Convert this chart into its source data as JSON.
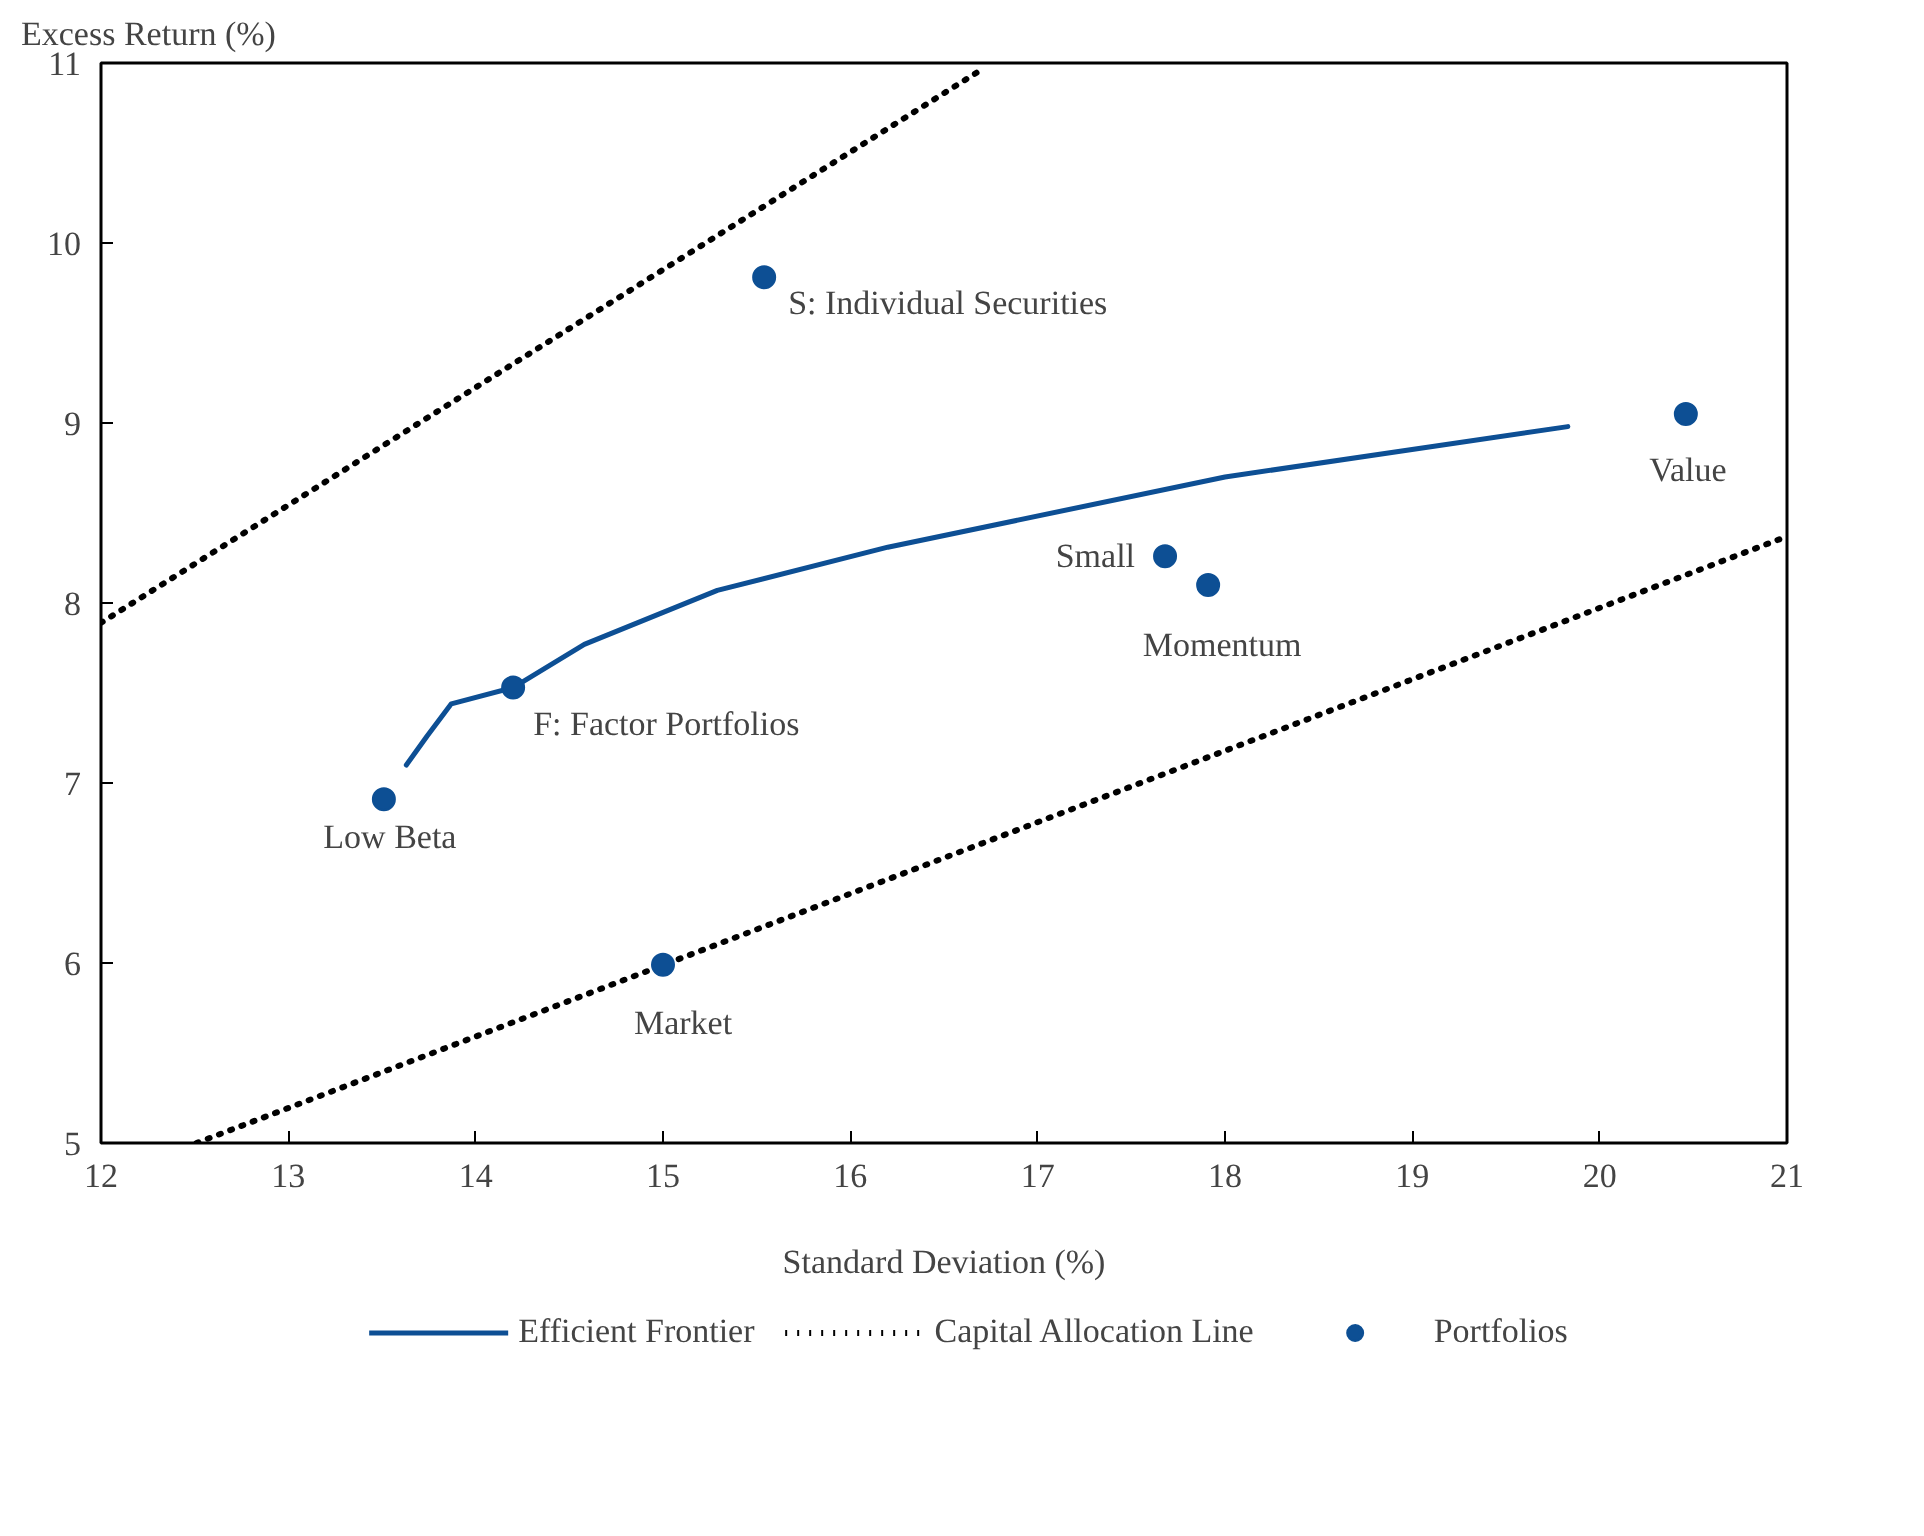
{
  "chart_data": {
    "type": "scatter",
    "xlabel": "Standard Deviation (%)",
    "ylabel": "Excess Return (%)",
    "xlim": [
      12,
      21
    ],
    "ylim": [
      5,
      11
    ],
    "xticks": [
      12,
      13,
      14,
      15,
      16,
      17,
      18,
      19,
      20,
      21
    ],
    "yticks": [
      5,
      6,
      7,
      8,
      9,
      10,
      11
    ],
    "grid": false,
    "legend": "bottom",
    "series": [
      {
        "name": "Efficient Frontier",
        "type": "line",
        "line_style": "solid",
        "marker": "none",
        "color": "#0d4f94",
        "x": [
          13.63,
          13.74,
          13.87,
          14.2,
          14.58,
          15.29,
          16.2,
          18.0,
          19.83
        ],
        "values": [
          7.1,
          7.26,
          7.44,
          7.53,
          7.77,
          8.07,
          8.31,
          8.7,
          8.98
        ]
      },
      {
        "name": "Capital Allocation Line",
        "type": "line",
        "line_style": "dotted",
        "marker": "none",
        "color": "#000000",
        "x": [
          12,
          16.68
        ],
        "values": [
          7.89,
          10.95
        ]
      },
      {
        "type": "line",
        "line_style": "dotted",
        "marker": "none",
        "color": "#000000",
        "x": [
          12.51,
          21
        ],
        "values": [
          5.0,
          8.37
        ]
      },
      {
        "name": "Portfolios",
        "marker": "circle",
        "color": "#0d4f94",
        "x": [
          15.54,
          14.2,
          13.51,
          15.0,
          17.68,
          17.91,
          20.46
        ],
        "values": [
          9.81,
          7.53,
          6.91,
          5.99,
          8.26,
          8.1,
          9.05
        ]
      }
    ],
    "annotations": [
      "S: Individual Securities",
      "F: Factor Portfolios",
      "Low Beta",
      "Market",
      "Small",
      "Momentum",
      "Value"
    ]
  }
}
